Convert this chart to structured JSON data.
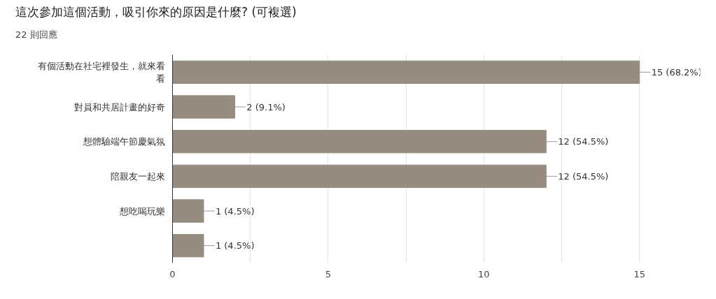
{
  "chart_data": {
    "type": "bar",
    "orientation": "horizontal",
    "title": "這次參加這個活動，吸引你來的原因是什麼? (可複選)",
    "subtitle": "22 則回應",
    "categories": [
      "有個活動在社宅裡發生，就來看看",
      "對員和共居計畫的好奇",
      "想體驗端午節慶氣氛",
      "陪親友一起來",
      "想吃喝玩樂",
      null
    ],
    "values": [
      15,
      2,
      12,
      12,
      1,
      1
    ],
    "color": "#968d80",
    "value_labels": [
      "15 (68.2%)",
      "2 (9.1%)",
      "12 (54.5%)",
      "12 (54.5%)",
      "1 (4.5%)",
      "1 (4.5%)"
    ],
    "xlim": [
      0,
      15
    ],
    "xticks": [
      0,
      {
        "value": 2.5,
        "label": null
      },
      5,
      {
        "value": 7.5,
        "label": null
      },
      10,
      {
        "value": 12.5,
        "label": null
      },
      15
    ],
    "grid": "x"
  }
}
